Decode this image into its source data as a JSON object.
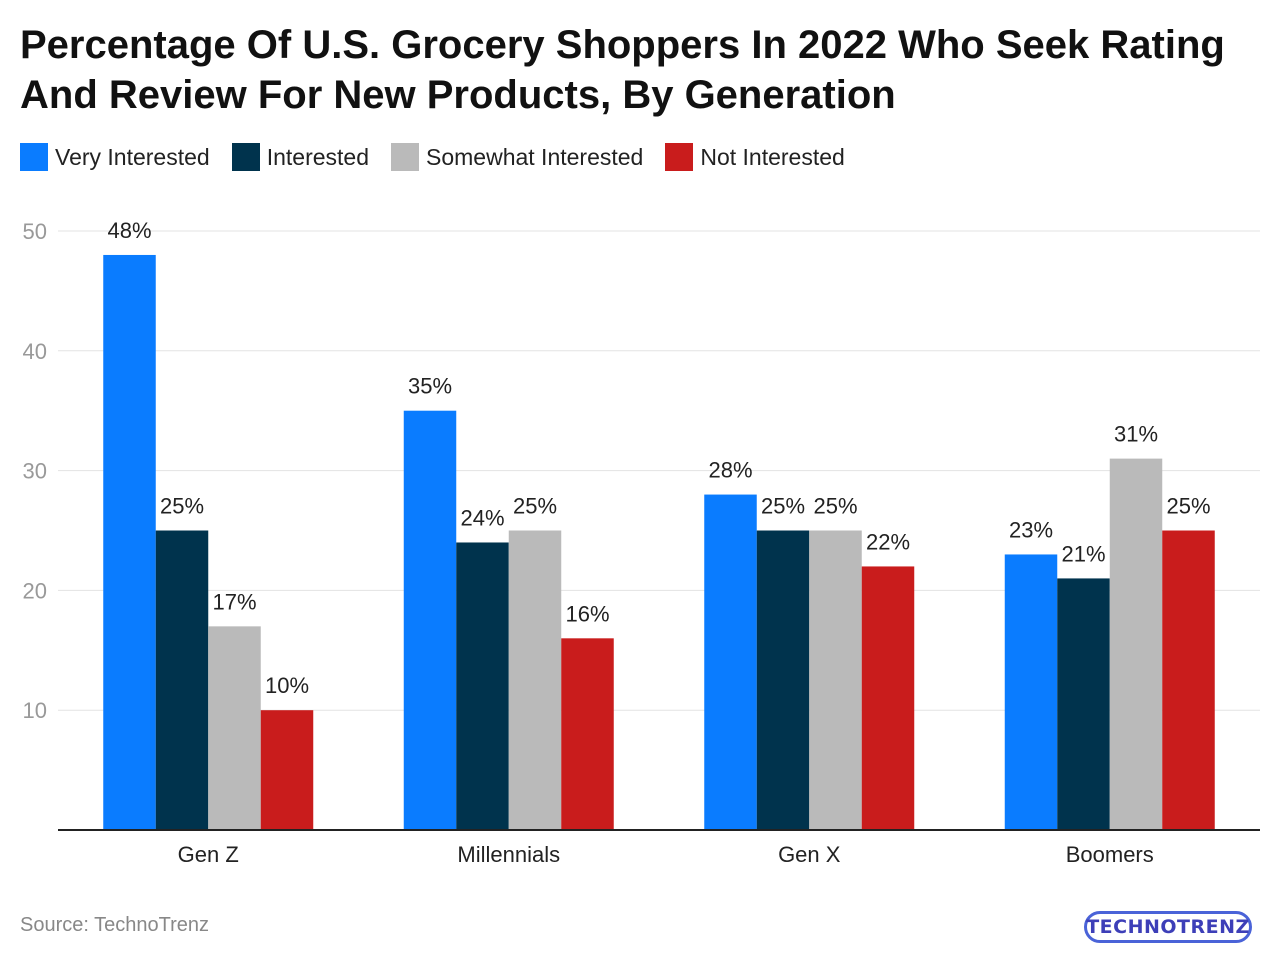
{
  "title": "Percentage Of U.S. Grocery Shoppers In 2022 Who Seek Rating And Review For New Products, By Generation",
  "source": "Source: TechnoTrenz",
  "logo": "TECHNOTRENZ",
  "chart_data": {
    "type": "bar",
    "title": "Percentage Of U.S. Grocery Shoppers In 2022 Who Seek Rating And Review For New Products, By Generation",
    "xlabel": "",
    "ylabel": "",
    "ylim": [
      0,
      50
    ],
    "yticks": [
      10,
      20,
      30,
      40,
      50
    ],
    "grid": true,
    "legend_position": "top-left",
    "categories": [
      "Gen Z",
      "Millennials",
      "Gen X",
      "Boomers"
    ],
    "value_suffix": "%",
    "series": [
      {
        "name": "Very Interested",
        "color": "#0a7cff",
        "values": [
          48,
          35,
          28,
          23
        ]
      },
      {
        "name": "Interested",
        "color": "#00334d",
        "values": [
          25,
          24,
          25,
          21
        ]
      },
      {
        "name": "Somewhat Interested",
        "color": "#bababa",
        "values": [
          17,
          25,
          25,
          31
        ]
      },
      {
        "name": "Not Interested",
        "color": "#c91c1c",
        "values": [
          10,
          16,
          22,
          25
        ]
      }
    ]
  }
}
